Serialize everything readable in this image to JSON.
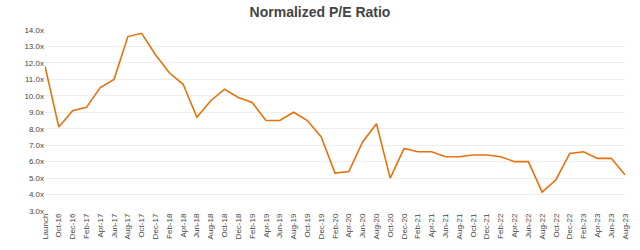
{
  "chart_data": {
    "type": "line",
    "title": "Normalized P/E Ratio",
    "categories": [
      "Launch",
      "Oct-16",
      "Dec-16",
      "Feb-17",
      "Apr-17",
      "Jun-17",
      "Aug-17",
      "Oct-17",
      "Dec-17",
      "Feb-18",
      "Apr-18",
      "Jun-18",
      "Aug-18",
      "Oct-18",
      "Dec-18",
      "Feb-19",
      "Apr-19",
      "Jun-19",
      "Aug-19",
      "Oct-19",
      "Dec-19",
      "Feb-20",
      "Apr-20",
      "Jun-20",
      "Aug-20",
      "Oct-20",
      "Dec-20",
      "Feb-21",
      "Apr-21",
      "Jun-21",
      "Aug-21",
      "Oct-21",
      "Dec-21",
      "Feb-22",
      "Apr-22",
      "Jun-22",
      "Aug-22",
      "Oct-22",
      "Dec-22",
      "Feb-23",
      "Apr-23",
      "Jun-23",
      "Aug-23"
    ],
    "values": [
      11.8,
      8.1,
      9.1,
      9.3,
      10.5,
      11.0,
      13.6,
      13.8,
      12.5,
      11.4,
      10.7,
      8.7,
      9.7,
      10.4,
      9.9,
      9.6,
      8.5,
      8.5,
      9.0,
      8.5,
      7.5,
      5.3,
      5.4,
      7.2,
      8.3,
      5.0,
      6.8,
      6.6,
      6.6,
      6.3,
      6.3,
      6.4,
      6.4,
      6.3,
      6.0,
      6.0,
      4.15,
      4.9,
      6.5,
      6.6,
      6.2,
      6.2,
      5.2
    ],
    "color": "#E8710A",
    "ylim": [
      3.0,
      14.0
    ],
    "yticks": [
      {
        "value": 3.0,
        "label": "3.0x"
      },
      {
        "value": 4.0,
        "label": "4.0x"
      },
      {
        "value": 5.0,
        "label": "5.0x"
      },
      {
        "value": 6.0,
        "label": "6.0x"
      },
      {
        "value": 7.0,
        "label": "7.0x"
      },
      {
        "value": 8.0,
        "label": "8.0x"
      },
      {
        "value": 9.0,
        "label": "9.0x"
      },
      {
        "value": 10.0,
        "label": "10.0x"
      },
      {
        "value": 11.0,
        "label": "11.0x"
      },
      {
        "value": 12.0,
        "label": "12.0x"
      },
      {
        "value": 13.0,
        "label": "13.0x"
      },
      {
        "value": 14.0,
        "label": "14.0x"
      }
    ],
    "grid": true
  }
}
